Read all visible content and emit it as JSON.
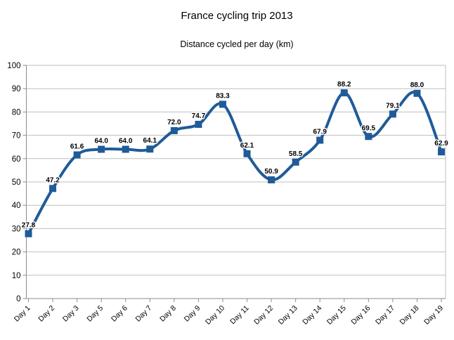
{
  "chart_data": {
    "type": "line",
    "title": "France cycling trip 2013",
    "subtitle": "Distance cycled per day (km)",
    "categories": [
      "Day 1",
      "Day 2",
      "Day 3",
      "Day 5",
      "Day 6",
      "Day 7",
      "Day 8",
      "Day 9",
      "Day 10",
      "Day 11",
      "Day 12",
      "Day 13",
      "Day 14",
      "Day 15",
      "Day 16",
      "Day 17",
      "Day 18",
      "Day 19"
    ],
    "series": [
      {
        "name": "Distance cycled per day (km)",
        "values": [
          27.8,
          47.2,
          61.6,
          64.0,
          64.0,
          64.1,
          72.0,
          74.7,
          83.3,
          62.1,
          50.9,
          58.5,
          67.9,
          88.2,
          69.5,
          79.1,
          88.0,
          62.9
        ],
        "point_labels": [
          "27.8",
          "47.2",
          "61.6",
          "64.0",
          "64.0",
          "64.1",
          "72.0",
          "74.7",
          "83.3",
          "62.1",
          "50.9",
          "58.5",
          "67.9",
          "88.2",
          "69.5",
          "79.1",
          "88.0",
          "62.9"
        ]
      }
    ],
    "xlabel": "",
    "ylabel": "",
    "ylim": [
      0,
      100
    ],
    "y_ticks": [
      0,
      10,
      20,
      30,
      40,
      50,
      60,
      70,
      80,
      90,
      100
    ],
    "grid": true,
    "legend": "none",
    "smooth": true,
    "marker": "square",
    "colors": {
      "line": "#1f5b99",
      "marker": "#1f5b99",
      "grid": "#bfbfbf",
      "axis": "#8c8c8c",
      "text": "#000000",
      "background": "#ffffff"
    }
  }
}
